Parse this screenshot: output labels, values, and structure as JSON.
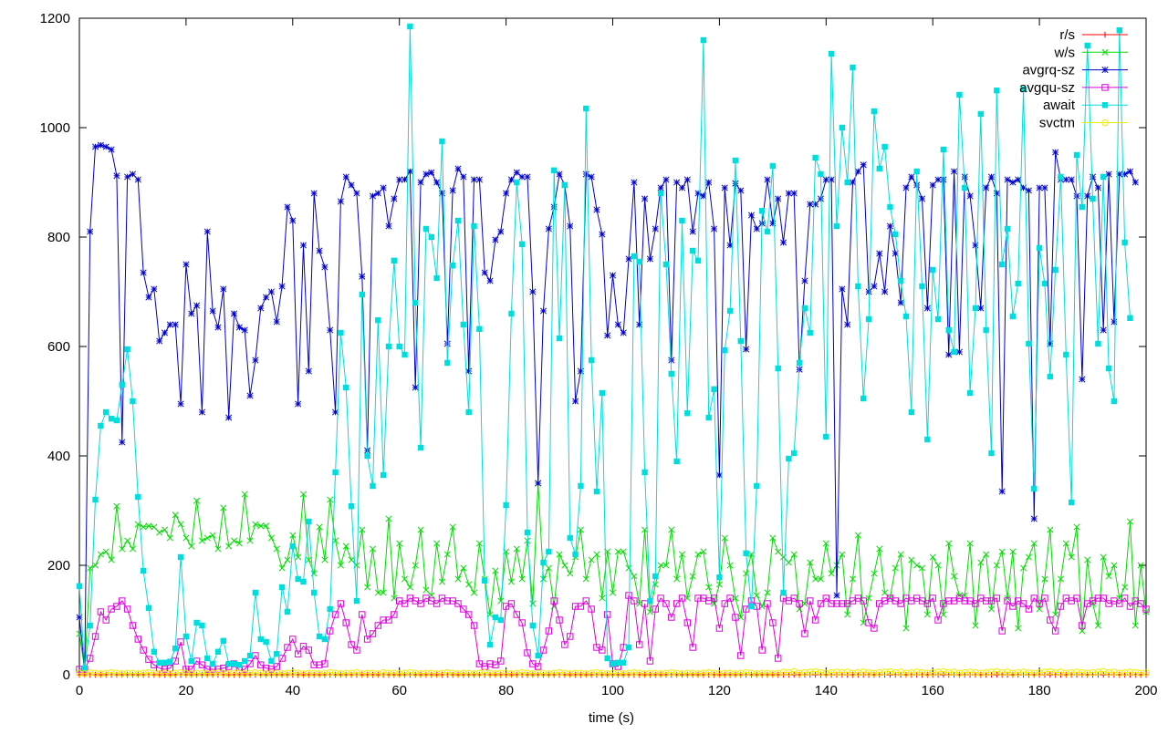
{
  "chart_data": {
    "type": "line",
    "title": "",
    "xlabel": "time (s)",
    "ylabel": "",
    "xlim": [
      0,
      200
    ],
    "ylim": [
      0,
      1200
    ],
    "xticks": [
      "0",
      "20",
      "40",
      "60",
      "80",
      "100",
      "120",
      "140",
      "160",
      "180",
      "200"
    ],
    "yticks": [
      "0",
      "200",
      "400",
      "600",
      "800",
      "1000",
      "1200"
    ],
    "legend_position": "top-right",
    "grid": false,
    "series": [
      {
        "name": "r/s",
        "color": "#ff0000",
        "marker": "plus",
        "values": [
          0,
          0,
          0,
          0,
          0,
          0,
          0,
          0,
          0,
          0,
          0,
          0,
          0,
          0,
          0,
          0,
          0,
          0,
          0,
          0,
          0,
          0,
          0,
          0,
          0,
          0,
          0,
          0,
          0,
          0,
          0,
          0,
          0,
          0,
          0,
          0,
          0,
          0,
          0,
          0,
          0,
          0,
          0,
          0,
          0,
          0,
          0,
          0,
          0,
          0,
          0,
          0,
          0,
          0,
          0,
          0,
          0,
          0,
          0,
          0,
          0,
          0,
          0,
          0,
          0,
          0,
          0,
          0,
          0,
          0,
          0,
          0,
          0,
          0,
          0,
          0,
          0,
          0,
          0,
          0,
          0,
          0,
          0,
          0,
          0,
          0,
          0,
          0,
          0,
          0,
          0,
          0,
          0,
          0,
          0,
          0,
          0,
          0,
          0,
          0,
          0,
          0,
          0,
          0,
          0,
          0,
          0,
          0,
          0,
          0,
          0,
          0,
          0,
          0,
          0,
          0,
          0,
          0,
          0,
          0,
          0,
          0,
          0,
          0,
          0,
          0,
          0,
          0,
          0,
          0,
          0,
          0,
          0,
          0,
          0,
          0,
          0,
          0,
          0,
          0,
          0,
          0,
          0,
          0,
          0,
          0,
          0,
          0,
          0,
          0,
          0,
          0,
          0,
          0,
          0,
          0,
          0,
          0,
          0,
          0,
          0,
          0,
          0,
          0,
          0,
          0,
          0,
          0,
          0,
          0,
          0,
          0,
          0,
          0,
          0,
          0,
          0,
          0,
          0,
          0,
          0,
          0,
          0,
          0,
          0,
          0,
          0,
          0,
          0,
          0,
          0,
          0,
          0,
          0,
          0,
          0,
          0,
          0,
          0,
          0,
          0
        ]
      },
      {
        "name": "w/s",
        "color": "#00dd00",
        "marker": "x",
        "values": [
          75,
          10,
          195,
          200,
          220,
          225,
          210,
          308,
          230,
          245,
          230,
          275,
          270,
          272,
          270,
          260,
          265,
          250,
          292,
          275,
          250,
          235,
          318,
          245,
          250,
          255,
          230,
          305,
          235,
          245,
          240,
          330,
          245,
          275,
          272,
          272,
          250,
          230,
          195,
          210,
          255,
          215,
          330,
          210,
          185,
          270,
          210,
          320,
          245,
          200,
          235,
          210,
          200,
          265,
          160,
          230,
          150,
          150,
          285,
          140,
          240,
          175,
          160,
          200,
          265,
          155,
          145,
          240,
          170,
          220,
          270,
          175,
          195,
          165,
          150,
          240,
          175,
          110,
          190,
          135,
          225,
          170,
          230,
          175,
          245,
          130,
          350,
          175,
          195,
          125,
          220,
          200,
          185,
          215,
          265,
          175,
          210,
          220,
          140,
          225,
          150,
          225,
          225,
          195,
          180,
          130,
          265,
          115,
          165,
          200,
          200,
          265,
          175,
          220,
          140,
          180,
          220,
          225,
          160,
          130,
          165,
          250,
          200,
          140,
          105,
          185,
          220,
          145,
          125,
          150,
          250,
          225,
          215,
          205,
          220,
          120,
          130,
          205,
          175,
          175,
          240,
          185,
          200,
          220,
          110,
          175,
          255,
          95,
          140,
          185,
          230,
          150,
          140,
          195,
          220,
          85,
          210,
          200,
          195,
          110,
          215,
          200,
          110,
          240,
          180,
          145,
          145,
          240,
          90,
          205,
          220,
          120,
          200,
          225,
          140,
          225,
          85,
          195,
          215,
          240,
          120,
          175,
          265,
          110,
          175,
          240,
          215,
          270,
          80,
          210,
          130,
          90,
          215,
          180,
          200,
          140,
          160,
          280,
          90,
          200,
          115
        ]
      },
      {
        "name": "avgrq-sz",
        "color": "#0000cc",
        "marker": "star",
        "values": [
          105,
          10,
          810,
          965,
          968,
          965,
          960,
          912,
          425,
          910,
          915,
          905,
          735,
          690,
          705,
          610,
          625,
          640,
          640,
          495,
          750,
          660,
          675,
          480,
          810,
          665,
          635,
          705,
          470,
          660,
          635,
          630,
          510,
          575,
          670,
          690,
          700,
          645,
          710,
          855,
          830,
          495,
          785,
          555,
          880,
          775,
          745,
          630,
          480,
          865,
          910,
          895,
          880,
          728,
          410,
          875,
          880,
          890,
          820,
          870,
          905,
          905,
          920,
          525,
          900,
          915,
          918,
          900,
          880,
          605,
          885,
          925,
          910,
          555,
          905,
          905,
          735,
          720,
          795,
          810,
          880,
          905,
          918,
          910,
          910,
          700,
          350,
          665,
          815,
          855,
          915,
          895,
          820,
          500,
          555,
          915,
          910,
          850,
          805,
          620,
          730,
          640,
          625,
          760,
          900,
          640,
          870,
          760,
          815,
          890,
          905,
          575,
          900,
          890,
          905,
          810,
          880,
          875,
          900,
          815,
          365,
          890,
          785,
          898,
          885,
          595,
          840,
          815,
          825,
          905,
          825,
          870,
          790,
          880,
          880,
          558,
          720,
          860,
          860,
          870,
          905,
          905,
          145,
          705,
          640,
          900,
          920,
          932,
          700,
          710,
          770,
          700,
          820,
          770,
          680,
          890,
          910,
          895,
          870,
          670,
          895,
          905,
          905,
          585,
          920,
          590,
          910,
          875,
          785,
          670,
          890,
          910,
          880,
          335,
          905,
          900,
          905,
          890,
          885,
          285,
          890,
          890,
          605,
          955,
          905,
          905,
          905,
          875,
          540,
          875,
          910,
          890,
          630,
          915,
          645,
          915,
          915,
          920,
          900
        ]
      },
      {
        "name": "avgqu-sz",
        "color": "#dd00dd",
        "marker": "square",
        "values": [
          10,
          10,
          30,
          70,
          115,
          100,
          120,
          125,
          135,
          120,
          90,
          65,
          45,
          28,
          18,
          12,
          10,
          12,
          25,
          60,
          10,
          10,
          25,
          18,
          10,
          10,
          10,
          12,
          15,
          20,
          8,
          10,
          20,
          35,
          18,
          12,
          10,
          15,
          30,
          50,
          65,
          38,
          52,
          45,
          18,
          18,
          20,
          80,
          110,
          130,
          95,
          55,
          45,
          110,
          65,
          75,
          90,
          100,
          100,
          110,
          135,
          130,
          140,
          135,
          130,
          140,
          135,
          130,
          140,
          135,
          135,
          130,
          120,
          110,
          90,
          20,
          15,
          20,
          18,
          25,
          125,
          130,
          110,
          95,
          40,
          20,
          15,
          45,
          80,
          135,
          100,
          55,
          70,
          125,
          125,
          135,
          120,
          50,
          45,
          110,
          20,
          15,
          50,
          145,
          135,
          55,
          130,
          25,
          120,
          140,
          130,
          105,
          130,
          140,
          95,
          50,
          140,
          140,
          135,
          140,
          85,
          130,
          140,
          105,
          35,
          120,
          135,
          125,
          45,
          130,
          95,
          30,
          140,
          135,
          140,
          130,
          75,
          135,
          100,
          130,
          140,
          130,
          130,
          130,
          130,
          135,
          140,
          135,
          95,
          85,
          130,
          135,
          140,
          135,
          130,
          140,
          135,
          140,
          135,
          130,
          140,
          100,
          130,
          135,
          135,
          140,
          135,
          135,
          130,
          140,
          135,
          135,
          140,
          80,
          135,
          125,
          135,
          130,
          120,
          140,
          130,
          140,
          100,
          80,
          125,
          140,
          135,
          140,
          90,
          130,
          135,
          140,
          140,
          130,
          135,
          130,
          140,
          125,
          135,
          130,
          120
        ]
      },
      {
        "name": "await",
        "color": "#00dddd",
        "marker": "filled-square",
        "values": [
          162,
          12,
          90,
          320,
          455,
          480,
          468,
          465,
          530,
          595,
          500,
          325,
          190,
          122,
          42,
          22,
          22,
          24,
          48,
          215,
          70,
          25,
          95,
          90,
          30,
          20,
          42,
          62,
          20,
          20,
          18,
          25,
          35,
          150,
          65,
          60,
          25,
          38,
          160,
          115,
          235,
          175,
          170,
          280,
          150,
          70,
          65,
          120,
          370,
          625,
          525,
          308,
          135,
          695,
          400,
          345,
          648,
          365,
          600,
          757,
          600,
          585,
          1185,
          680,
          415,
          815,
          800,
          725,
          975,
          570,
          748,
          830,
          640,
          480,
          820,
          632,
          172,
          55,
          105,
          100,
          310,
          660,
          900,
          787,
          260,
          90,
          35,
          205,
          225,
          922,
          615,
          895,
          250,
          220,
          345,
          1035,
          575,
          335,
          515,
          30,
          20,
          22,
          22,
          50,
          765,
          755,
          370,
          135,
          180,
          880,
          750,
          550,
          390,
          830,
          478,
          775,
          757,
          1160,
          470,
          522,
          178,
          593,
          665,
          940,
          610,
          222,
          125,
          345,
          848,
          810,
          930,
          560,
          150,
          395,
          405,
          570,
          670,
          625,
          945,
          915,
          435,
          1135,
          820,
          1000,
          900,
          1110,
          710,
          505,
          650,
          1030,
          925,
          965,
          855,
          805,
          720,
          655,
          480,
          920,
          710,
          430,
          740,
          650,
          960,
          630,
          590,
          1060,
          890,
          515,
          670,
          1025,
          630,
          405,
          1068,
          750,
          815,
          655,
          715,
          1070,
          605,
          340,
          780,
          715,
          545,
          740,
          910,
          585,
          315,
          950,
          855,
          1150,
          870,
          605,
          910,
          560,
          500,
          1178,
          790,
          652
        ]
      },
      {
        "name": "svctm",
        "color": "#eeee00",
        "marker": "circle",
        "values": [
          3,
          2,
          4,
          3,
          2,
          3,
          4,
          3,
          2,
          3,
          3,
          2,
          3,
          4,
          3,
          2,
          3,
          2,
          3,
          4,
          3,
          2,
          3,
          3,
          2,
          3,
          4,
          3,
          2,
          3,
          3,
          2,
          3,
          4,
          3,
          2,
          3,
          3,
          2,
          3,
          4,
          3,
          2,
          3,
          3,
          2,
          3,
          4,
          3,
          2,
          3,
          3,
          4,
          2,
          3,
          3,
          2,
          4,
          3,
          3,
          2,
          3,
          4,
          3,
          2,
          3,
          3,
          2,
          3,
          4,
          3,
          2,
          3,
          3,
          2,
          3,
          4,
          3,
          2,
          3,
          3,
          2,
          3,
          4,
          3,
          2,
          3,
          3,
          2,
          3,
          4,
          3,
          2,
          3,
          3,
          2,
          3,
          4,
          3,
          2,
          3,
          3,
          2,
          3,
          4,
          3,
          2,
          3,
          3,
          2,
          3,
          4,
          3,
          2,
          3,
          3,
          2,
          3,
          4,
          3,
          2,
          3,
          3,
          2,
          3,
          4,
          3,
          2,
          3,
          3,
          2,
          3,
          5,
          4,
          6,
          3,
          4,
          5,
          6,
          4,
          3,
          4,
          5,
          4,
          5,
          3,
          4,
          5,
          4,
          3,
          4,
          5,
          6,
          4,
          5,
          3,
          4,
          5,
          4,
          3,
          4,
          5,
          6,
          4,
          5,
          3,
          4,
          5,
          4,
          3,
          4,
          5,
          6,
          4,
          5,
          3,
          4,
          5,
          4,
          3,
          4,
          5,
          6,
          4,
          5,
          3,
          4,
          5,
          4,
          3,
          4,
          5,
          6,
          4,
          5,
          3,
          4,
          5,
          4,
          3,
          4
        ]
      }
    ]
  }
}
